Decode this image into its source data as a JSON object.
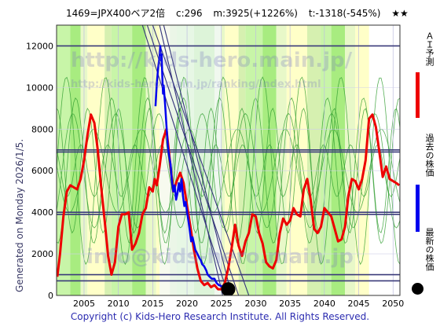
{
  "header": {
    "title": "1469=JPX400ベア2倍",
    "c": "c:296",
    "m": "m:3925(+1226%)",
    "t": "t:-1318(-545%)",
    "stars": "★★"
  },
  "side_label": "Generated on Monday 2026/1/5.",
  "legend": [
    {
      "label": "ＡＩ予測",
      "color": "#ee0000"
    },
    {
      "label": "過去の株価",
      "color": "#0000ee"
    },
    {
      "label": "最新の株価",
      "color": "#000000"
    }
  ],
  "footer": "Copyright (c) Kids-Hero Research Institute. All Rights Reserved.",
  "watermarks": [
    "http://kids-hero.main.jp/",
    "http://kids-hero.main.jp/ranking/index.html",
    "info@kids-hero.main.jp"
  ],
  "chart_data": {
    "type": "line",
    "xlim": [
      2001,
      2051
    ],
    "ylim": [
      0,
      13000
    ],
    "x_ticks": [
      2005,
      2010,
      2015,
      2020,
      2025,
      2030,
      2035,
      2040,
      2045,
      2050
    ],
    "y_ticks": [
      0,
      2000,
      4000,
      6000,
      8000,
      10000,
      12000
    ],
    "hlines": [
      700,
      1000,
      3900,
      4000,
      6900,
      7000,
      12000
    ],
    "latest_point": {
      "x": 2026.0,
      "y": 296
    },
    "series": [
      {
        "name": "ＡＩ予測",
        "color": "#ee0000",
        "points": [
          [
            2001.1,
            900
          ],
          [
            2001.5,
            2000
          ],
          [
            2002,
            3800
          ],
          [
            2002.5,
            5000
          ],
          [
            2003,
            5300
          ],
          [
            2003.5,
            5200
          ],
          [
            2004,
            5100
          ],
          [
            2004.5,
            5600
          ],
          [
            2005,
            6500
          ],
          [
            2005.5,
            7700
          ],
          [
            2006,
            8700
          ],
          [
            2006.5,
            8300
          ],
          [
            2007,
            7000
          ],
          [
            2007.5,
            5200
          ],
          [
            2008,
            3600
          ],
          [
            2008.5,
            1900
          ],
          [
            2009,
            1000
          ],
          [
            2009.5,
            1600
          ],
          [
            2010,
            3300
          ],
          [
            2010.5,
            3900
          ],
          [
            2011,
            3900
          ],
          [
            2011.5,
            4000
          ],
          [
            2012,
            2200
          ],
          [
            2012.5,
            2500
          ],
          [
            2013,
            3000
          ],
          [
            2013.5,
            3900
          ],
          [
            2014,
            4200
          ],
          [
            2014.5,
            5200
          ],
          [
            2015,
            5000
          ],
          [
            2015.3,
            5600
          ],
          [
            2015.6,
            5300
          ],
          [
            2016,
            6200
          ],
          [
            2016.5,
            7500
          ],
          [
            2017,
            8000
          ],
          [
            2017.5,
            6500
          ],
          [
            2018,
            5000
          ],
          [
            2018.5,
            5500
          ],
          [
            2019,
            5900
          ],
          [
            2019.5,
            5400
          ],
          [
            2020,
            4300
          ],
          [
            2020.5,
            3300
          ],
          [
            2021,
            2200
          ],
          [
            2021.5,
            1300
          ],
          [
            2022,
            700
          ],
          [
            2022.5,
            500
          ],
          [
            2023,
            600
          ],
          [
            2023.5,
            400
          ],
          [
            2024,
            500
          ],
          [
            2024.5,
            300
          ],
          [
            2025,
            300
          ],
          [
            2025.5,
            600
          ],
          [
            2026,
            1300
          ],
          [
            2026.5,
            2300
          ],
          [
            2027,
            3400
          ],
          [
            2027.5,
            2400
          ],
          [
            2028,
            1900
          ],
          [
            2028.5,
            2600
          ],
          [
            2029,
            3000
          ],
          [
            2029.5,
            3900
          ],
          [
            2030,
            3800
          ],
          [
            2030.5,
            3000
          ],
          [
            2031,
            2500
          ],
          [
            2031.5,
            1600
          ],
          [
            2032,
            1400
          ],
          [
            2032.5,
            1300
          ],
          [
            2033,
            1700
          ],
          [
            2033.5,
            3000
          ],
          [
            2034,
            3700
          ],
          [
            2034.5,
            3400
          ],
          [
            2035,
            3600
          ],
          [
            2035.5,
            4200
          ],
          [
            2036,
            3900
          ],
          [
            2036.5,
            3800
          ],
          [
            2037,
            5100
          ],
          [
            2037.5,
            5600
          ],
          [
            2038,
            4600
          ],
          [
            2038.5,
            3200
          ],
          [
            2039,
            3000
          ],
          [
            2039.5,
            3300
          ],
          [
            2040,
            4200
          ],
          [
            2040.5,
            4000
          ],
          [
            2041,
            3800
          ],
          [
            2041.5,
            3200
          ],
          [
            2042,
            2600
          ],
          [
            2042.5,
            2700
          ],
          [
            2043,
            3300
          ],
          [
            2043.5,
            4800
          ],
          [
            2044,
            5600
          ],
          [
            2044.5,
            5500
          ],
          [
            2045,
            5100
          ],
          [
            2045.5,
            5600
          ],
          [
            2046,
            6500
          ],
          [
            2046.5,
            8500
          ],
          [
            2047,
            8700
          ],
          [
            2047.5,
            8100
          ],
          [
            2048,
            6900
          ],
          [
            2048.5,
            5700
          ],
          [
            2049,
            6200
          ],
          [
            2049.5,
            5600
          ],
          [
            2050,
            5500
          ],
          [
            2050.5,
            5400
          ],
          [
            2050.9,
            5300
          ]
        ]
      },
      {
        "name": "過去の株価",
        "color": "#0000ee",
        "points": [
          [
            2015.4,
            9100
          ],
          [
            2015.6,
            10200
          ],
          [
            2015.8,
            11000
          ],
          [
            2016,
            11500
          ],
          [
            2016.1,
            12000
          ],
          [
            2016.2,
            11300
          ],
          [
            2016.3,
            11600
          ],
          [
            2016.4,
            10500
          ],
          [
            2016.5,
            9700
          ],
          [
            2016.6,
            10100
          ],
          [
            2016.8,
            9200
          ],
          [
            2017,
            8200
          ],
          [
            2017.2,
            7200
          ],
          [
            2017.4,
            6700
          ],
          [
            2017.6,
            6300
          ],
          [
            2017.8,
            5500
          ],
          [
            2018,
            5000
          ],
          [
            2018.2,
            5300
          ],
          [
            2018.4,
            4600
          ],
          [
            2018.6,
            4900
          ],
          [
            2018.8,
            5400
          ],
          [
            2019,
            5000
          ],
          [
            2019.2,
            5600
          ],
          [
            2019.4,
            4800
          ],
          [
            2019.6,
            4300
          ],
          [
            2019.8,
            4500
          ],
          [
            2020,
            4000
          ],
          [
            2020.2,
            3600
          ],
          [
            2020.4,
            3100
          ],
          [
            2020.6,
            2600
          ],
          [
            2020.8,
            2800
          ],
          [
            2021,
            2500
          ],
          [
            2021.2,
            2200
          ],
          [
            2021.5,
            2000
          ],
          [
            2021.8,
            1800
          ],
          [
            2022,
            1700
          ],
          [
            2022.2,
            1500
          ],
          [
            2022.5,
            1400
          ],
          [
            2022.8,
            1200
          ],
          [
            2023,
            1000
          ],
          [
            2023.3,
            900
          ],
          [
            2023.6,
            800
          ],
          [
            2024,
            800
          ],
          [
            2024.3,
            600
          ],
          [
            2024.6,
            500
          ],
          [
            2025,
            450
          ],
          [
            2025.4,
            400
          ],
          [
            2025.8,
            320
          ]
        ]
      }
    ]
  }
}
